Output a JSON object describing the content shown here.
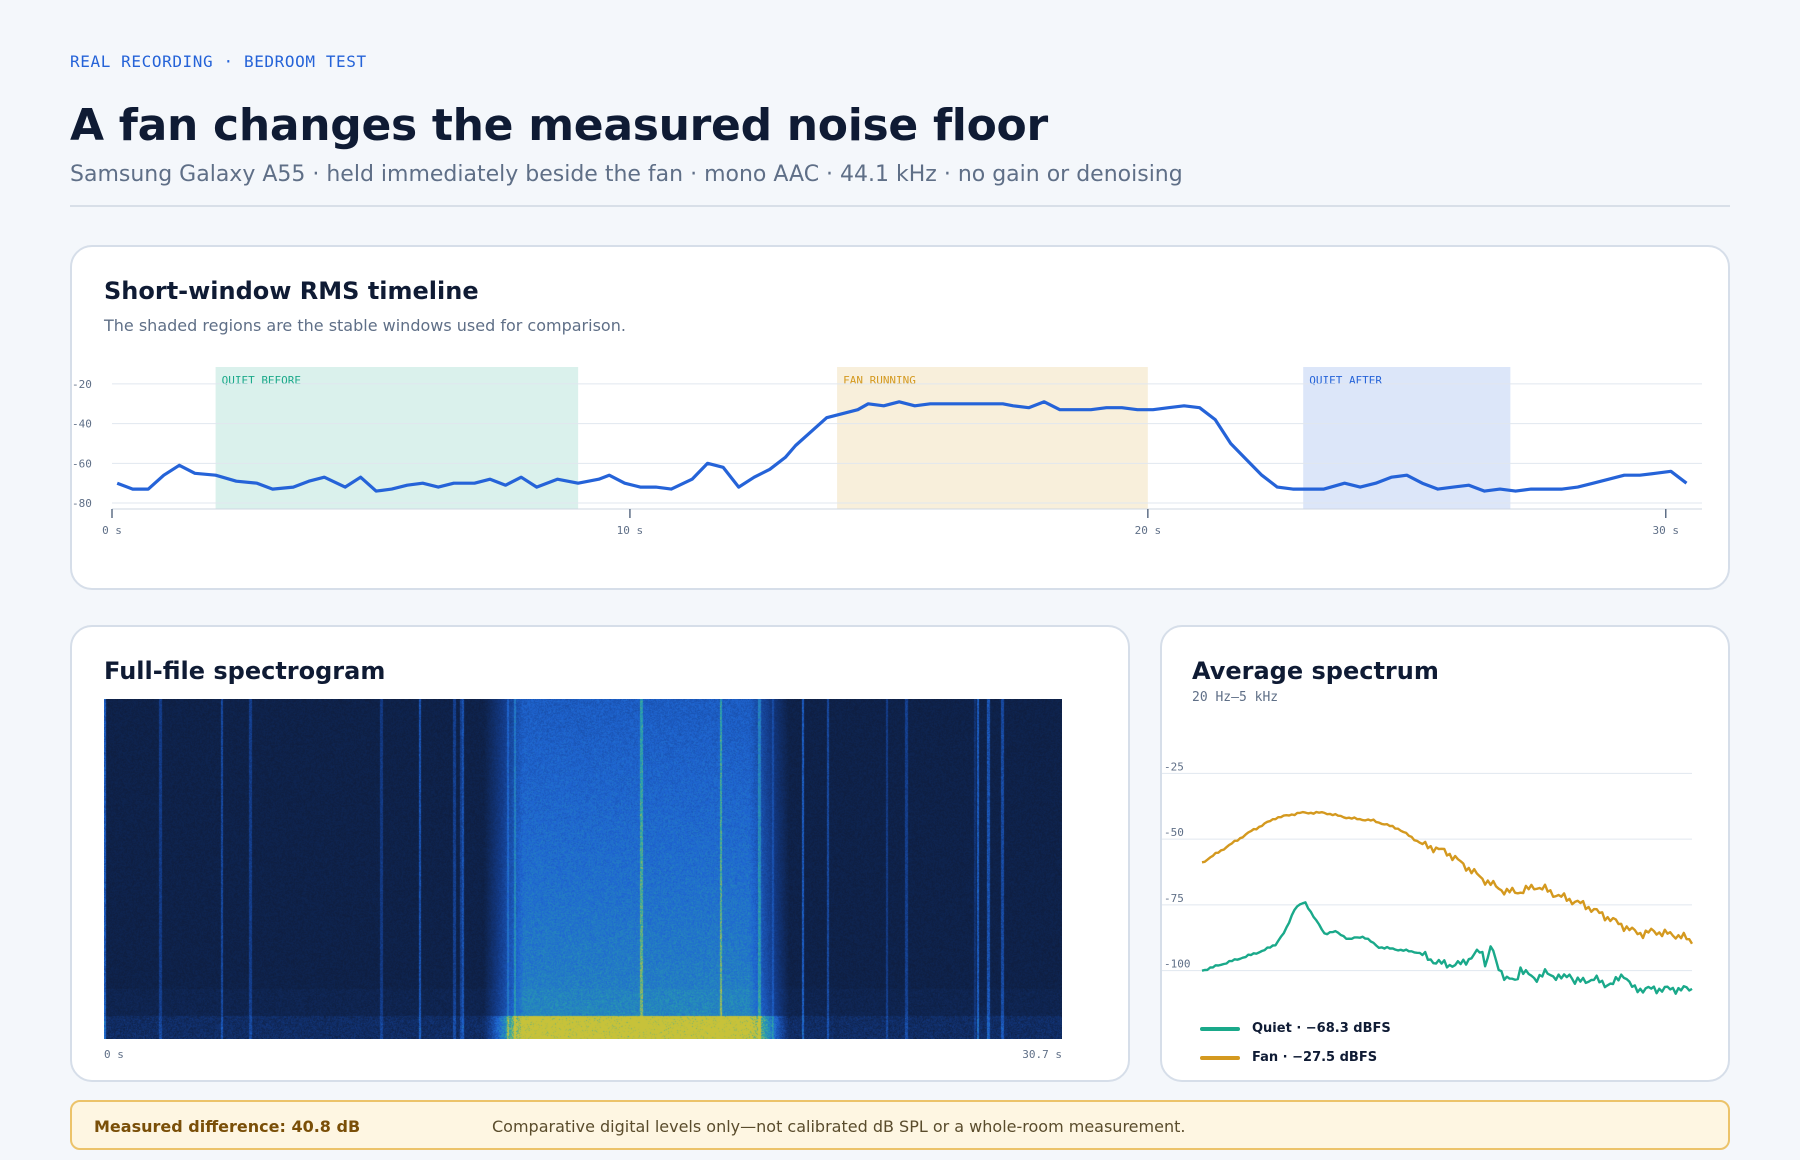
{
  "header": {
    "eyebrow": "REAL RECORDING · BEDROOM TEST",
    "title": "A fan changes the measured noise floor",
    "subtitle": "Samsung Galaxy A55 · held immediately beside the fan · mono AAC · 44.1 kHz · no gain or denoising"
  },
  "timeline": {
    "title": "Short-window RMS timeline",
    "caption": "The shaded regions are the stable windows used for comparison."
  },
  "spectrogram": {
    "title": "Full-file spectrogram",
    "x_start_label": "0 s",
    "x_end_label": "30.7 s"
  },
  "average": {
    "title": "Average spectrum",
    "caption": "20 Hz–5 kHz",
    "legend": [
      {
        "label": "Quiet · −68.3 dBFS",
        "color": "#1aa98a"
      },
      {
        "label": "Fan · −27.5 dBFS",
        "color": "#d4991f"
      }
    ]
  },
  "banner": {
    "lead": "Measured difference: 40.8 dB",
    "note": "Comparative digital levels only—not calibrated dB SPL or a whole-room measurement."
  },
  "colors": {
    "accent": "#2563d8",
    "quiet": "#1aa98a",
    "fan": "#d4991f",
    "quiet_after": "#2563d8"
  },
  "chart_data": [
    {
      "type": "line",
      "title": "Short-window RMS timeline",
      "xlim": [
        0,
        30.7
      ],
      "ylim": [
        -82,
        -14
      ],
      "x_ticks": [
        0,
        10,
        20,
        30
      ],
      "x_tick_labels": [
        "0 s",
        "10 s",
        "20 s",
        "30 s"
      ],
      "y_ticks": [
        -20,
        -40,
        -60,
        -80
      ],
      "y_tick_labels": [
        "-20",
        "-40",
        "-60",
        "-80"
      ],
      "grid": true,
      "regions": [
        {
          "label": "QUIET BEFORE",
          "from": 2.0,
          "to": 9.0,
          "color": "#1aa98a"
        },
        {
          "label": "FAN RUNNING",
          "from": 14.0,
          "to": 20.0,
          "color": "#d4991f"
        },
        {
          "label": "QUIET AFTER",
          "from": 23.0,
          "to": 27.0,
          "color": "#2563d8"
        }
      ],
      "series": [
        {
          "color": "#2563d8",
          "x": [
            0.1,
            0.4,
            0.7,
            1.0,
            1.3,
            1.6,
            2.0,
            2.4,
            2.8,
            3.1,
            3.5,
            3.8,
            4.1,
            4.5,
            4.8,
            5.1,
            5.4,
            5.7,
            6.0,
            6.3,
            6.6,
            7.0,
            7.3,
            7.6,
            7.9,
            8.2,
            8.6,
            9.0,
            9.4,
            9.6,
            9.9,
            10.2,
            10.5,
            10.8,
            11.2,
            11.5,
            11.8,
            12.1,
            12.4,
            12.7,
            13.0,
            13.2,
            13.5,
            13.8,
            14.1,
            14.4,
            14.6,
            14.9,
            15.2,
            15.5,
            15.8,
            16.1,
            16.4,
            16.7,
            17.0,
            17.2,
            17.4,
            17.7,
            18.0,
            18.3,
            18.6,
            18.9,
            19.2,
            19.5,
            19.8,
            20.1,
            20.4,
            20.7,
            21.0,
            21.3,
            21.6,
            21.9,
            22.2,
            22.5,
            22.8,
            23.1,
            23.4,
            23.8,
            24.1,
            24.4,
            24.7,
            25.0,
            25.3,
            25.6,
            25.9,
            26.2,
            26.5,
            26.8,
            27.1,
            27.4,
            27.7,
            28.0,
            28.3,
            28.6,
            28.9,
            29.2,
            29.5,
            29.8,
            30.1,
            30.4
          ],
          "values": [
            -70,
            -73,
            -73,
            -66,
            -61,
            -65,
            -66,
            -69,
            -70,
            -73,
            -72,
            -69,
            -67,
            -72,
            -67,
            -74,
            -73,
            -71,
            -70,
            -72,
            -70,
            -70,
            -68,
            -71,
            -67,
            -72,
            -68,
            -70,
            -68,
            -66,
            -70,
            -72,
            -72,
            -73,
            -68,
            -60,
            -62,
            -72,
            -67,
            -63,
            -57,
            -51,
            -44,
            -37,
            -35,
            -33,
            -30,
            -31,
            -29,
            -31,
            -30,
            -30,
            -30,
            -30,
            -30,
            -30,
            -31,
            -32,
            -29,
            -33,
            -33,
            -33,
            -32,
            -32,
            -33,
            -33,
            -32,
            -31,
            -32,
            -38,
            -50,
            -58,
            -66,
            -72,
            -73,
            -73,
            -73,
            -70,
            -72,
            -70,
            -67,
            -66,
            -70,
            -73,
            -72,
            -71,
            -74,
            -73,
            -74,
            -73,
            -73,
            -73,
            -72,
            -70,
            -68,
            -66,
            -66,
            -65,
            -64,
            -70
          ]
        }
      ]
    },
    {
      "type": "heatmap",
      "title": "Full-file spectrogram",
      "xlim": [
        0,
        30.7
      ],
      "x_tick_labels": [
        "0 s",
        "30.7 s"
      ],
      "fan_on_from": 12.8,
      "fan_on_to": 21.3,
      "colormap": [
        "#0d1a36",
        "#133a86",
        "#1f66d3",
        "#2ba6a8",
        "#c8c23a"
      ]
    },
    {
      "type": "line",
      "title": "Average spectrum",
      "xlabel": "20 Hz–5 kHz",
      "ylim": [
        -110,
        -15
      ],
      "y_ticks": [
        -25,
        -50,
        -75,
        -100
      ],
      "y_tick_labels": [
        "-25",
        "-50",
        "-75",
        "-100"
      ],
      "grid": true,
      "legend_position": "bottom-left",
      "series": [
        {
          "name": "Quiet · −68.3 dBFS",
          "color": "#1aa98a",
          "x": [
            0.0,
            0.05,
            0.1,
            0.13,
            0.15,
            0.17,
            0.19,
            0.21,
            0.23,
            0.25,
            0.27,
            0.3,
            0.33,
            0.36,
            0.4,
            0.44,
            0.48,
            0.52,
            0.55,
            0.57,
            0.58,
            0.59,
            0.6,
            0.62,
            0.64,
            0.65,
            0.66,
            0.68,
            0.7,
            0.72,
            0.74,
            0.75,
            0.76,
            0.78,
            0.8,
            0.82,
            0.84,
            0.86,
            0.88,
            0.9,
            0.92,
            0.94,
            0.95,
            0.96,
            1.0
          ],
          "values": [
            -100,
            -97,
            -94,
            -92,
            -90,
            -85,
            -76,
            -74,
            -80,
            -86,
            -85,
            -88,
            -87,
            -91,
            -92,
            -93,
            -97,
            -98,
            -95,
            -92,
            -98,
            -90,
            -97,
            -103,
            -104,
            -99,
            -101,
            -103,
            -101,
            -102,
            -103,
            -101,
            -104,
            -104,
            -103,
            -105,
            -105,
            -101,
            -107,
            -107,
            -107,
            -107,
            -107,
            -107,
            -107
          ]
        },
        {
          "name": "Fan · −27.5 dBFS",
          "color": "#d4991f",
          "x": [
            0.0,
            0.05,
            0.1,
            0.15,
            0.2,
            0.25,
            0.3,
            0.35,
            0.4,
            0.45,
            0.5,
            0.55,
            0.58,
            0.6,
            0.62,
            0.65,
            0.68,
            0.7,
            0.72,
            0.75,
            0.78,
            0.8,
            0.82,
            0.85,
            0.88,
            0.9,
            0.92,
            0.95,
            0.98,
            1.0
          ],
          "values": [
            -59,
            -53,
            -47,
            -42,
            -40,
            -40,
            -42,
            -43,
            -46,
            -52,
            -55,
            -62,
            -66,
            -68,
            -70,
            -70,
            -68,
            -69,
            -71,
            -73,
            -75,
            -77,
            -79,
            -82,
            -85,
            -86,
            -85,
            -86,
            -87,
            -89
          ]
        }
      ]
    }
  ]
}
